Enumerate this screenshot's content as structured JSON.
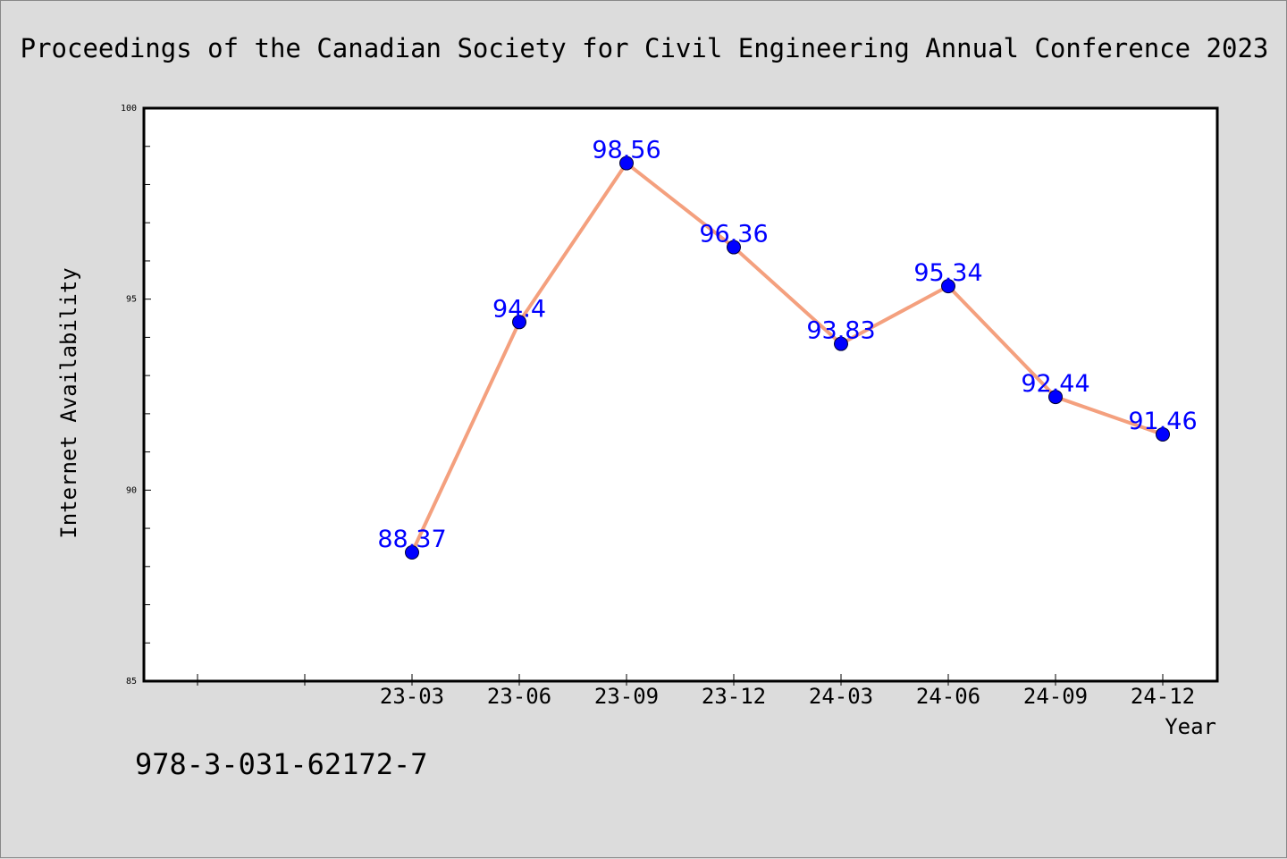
{
  "chart_data": {
    "type": "line",
    "title": "Proceedings of the Canadian Society for Civil Engineering Annual Conference 2023",
    "xlabel": "Year",
    "ylabel": "Internet Availability",
    "categories": [
      "23-03",
      "23-06",
      "23-09",
      "23-12",
      "24-03",
      "24-06",
      "24-09",
      "24-12"
    ],
    "series": [
      {
        "values": [
          88.37,
          94.4,
          98.56,
          96.36,
          93.83,
          95.34,
          92.44,
          91.46
        ],
        "data_labels": [
          "88.37",
          "94.4",
          "98.56",
          "96.36",
          "93.83",
          "95.34",
          "92.44",
          "91.46"
        ]
      }
    ],
    "ylim": [
      85,
      100
    ],
    "yticks": [
      "85",
      "90",
      "95",
      "100"
    ],
    "ytick_values": [
      85,
      90,
      95,
      100
    ],
    "minor_y_step": 1,
    "x_leading_empty_ticks": 2,
    "grid": false,
    "legend": "none",
    "colors": {
      "line": "#f4a07e",
      "marker": "#0000ff",
      "data_label": "#0000ff",
      "plot_background": "#ffffff",
      "page_background": "#dcdcdc"
    }
  },
  "footer": {
    "isbn": "978-3-031-62172-7"
  }
}
